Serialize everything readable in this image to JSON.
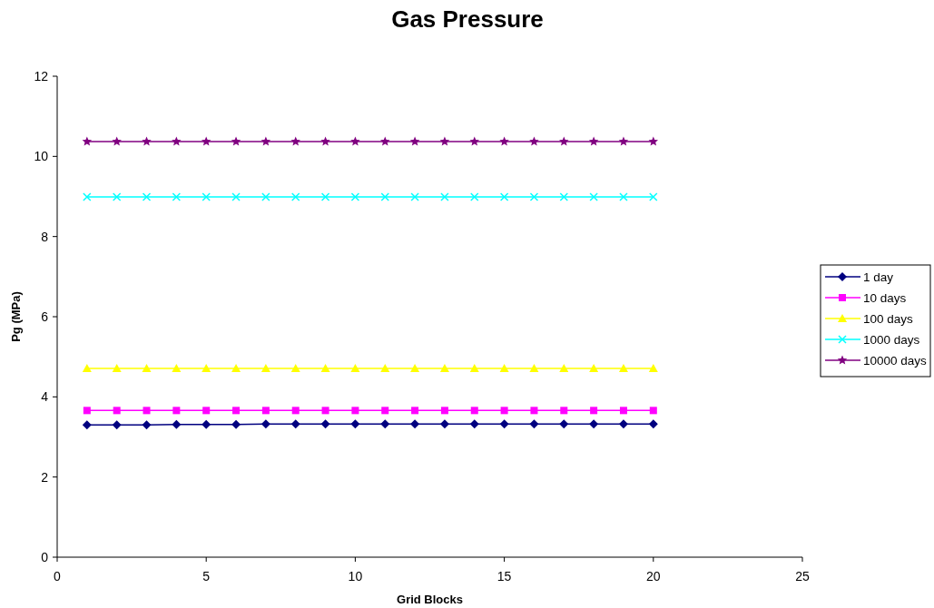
{
  "chart_data": {
    "type": "line",
    "title": "Gas Pressure",
    "xlabel": "Grid Blocks",
    "ylabel": "Pg (MPa)",
    "x": [
      1,
      2,
      3,
      4,
      5,
      6,
      7,
      8,
      9,
      10,
      11,
      12,
      13,
      14,
      15,
      16,
      17,
      18,
      19,
      20
    ],
    "xlim": [
      0,
      25
    ],
    "xticks": [
      0,
      5,
      10,
      15,
      20,
      25
    ],
    "ylim": [
      0,
      12
    ],
    "yticks": [
      0,
      2,
      4,
      6,
      8,
      10,
      12
    ],
    "grid": false,
    "legend": "right",
    "line_style": "solid",
    "series": [
      {
        "name": "1 day",
        "color": "#000080",
        "marker": "diamond",
        "values": [
          3.3,
          3.3,
          3.3,
          3.31,
          3.31,
          3.31,
          3.32,
          3.32,
          3.32,
          3.32,
          3.32,
          3.32,
          3.32,
          3.32,
          3.32,
          3.32,
          3.32,
          3.32,
          3.32,
          3.32
        ]
      },
      {
        "name": "10 days",
        "color": "#ff00ff",
        "marker": "square",
        "values": [
          3.66,
          3.66,
          3.66,
          3.66,
          3.66,
          3.66,
          3.66,
          3.66,
          3.66,
          3.66,
          3.66,
          3.66,
          3.66,
          3.66,
          3.66,
          3.66,
          3.66,
          3.66,
          3.66,
          3.66
        ]
      },
      {
        "name": "100 days",
        "color": "#ffff00",
        "marker": "triangle",
        "values": [
          4.71,
          4.71,
          4.71,
          4.71,
          4.71,
          4.71,
          4.71,
          4.71,
          4.71,
          4.71,
          4.71,
          4.71,
          4.71,
          4.71,
          4.71,
          4.71,
          4.71,
          4.71,
          4.71,
          4.71
        ]
      },
      {
        "name": "1000 days",
        "color": "#00ffff",
        "marker": "cross",
        "values": [
          8.99,
          8.99,
          8.99,
          8.99,
          8.99,
          8.99,
          8.99,
          8.99,
          8.99,
          8.99,
          8.99,
          8.99,
          8.99,
          8.99,
          8.99,
          8.99,
          8.99,
          8.99,
          8.99,
          8.99
        ]
      },
      {
        "name": "10000 days",
        "color": "#800080",
        "marker": "star",
        "values": [
          10.37,
          10.37,
          10.37,
          10.37,
          10.37,
          10.37,
          10.37,
          10.37,
          10.37,
          10.37,
          10.37,
          10.37,
          10.37,
          10.37,
          10.37,
          10.37,
          10.37,
          10.37,
          10.37,
          10.37
        ]
      }
    ]
  }
}
